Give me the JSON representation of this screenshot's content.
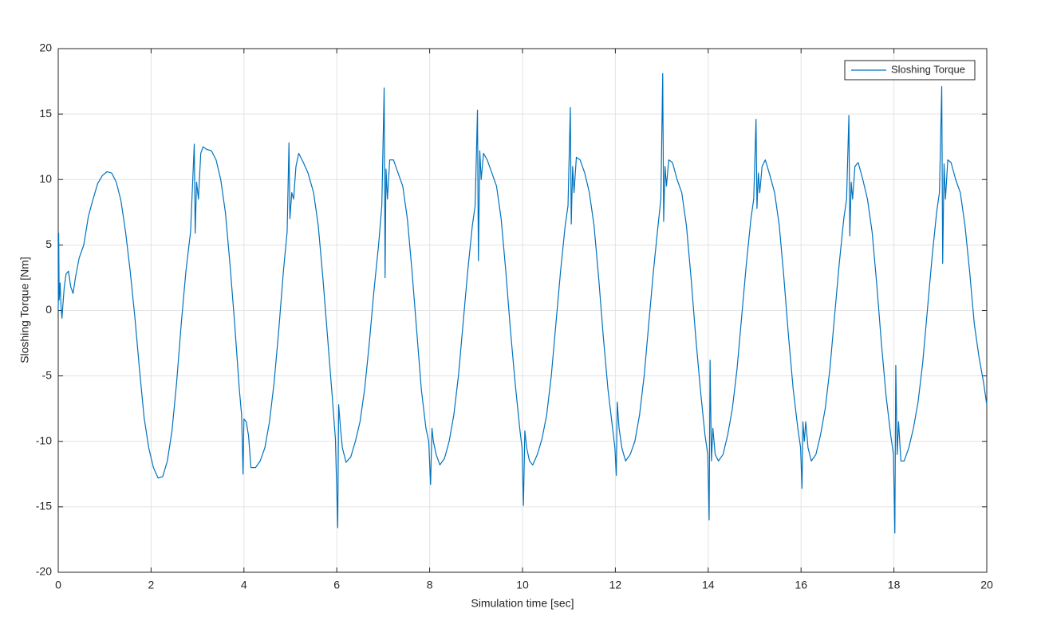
{
  "chart_data": {
    "type": "line",
    "xlabel": "Simulation time [sec]",
    "ylabel": "Sloshing Torque [Nm]",
    "xlim": [
      0,
      20
    ],
    "xticks": [
      0,
      2,
      4,
      6,
      8,
      10,
      12,
      14,
      16,
      18,
      20
    ],
    "ylim": [
      -20,
      20
    ],
    "yticks": [
      -20,
      -15,
      -10,
      -5,
      0,
      5,
      10,
      15,
      20
    ],
    "grid": true,
    "legend": "northeast",
    "x": [
      0,
      0.01,
      0.02,
      0.04,
      0.06,
      0.08,
      0.1,
      0.13,
      0.17,
      0.22,
      0.27,
      0.32,
      0.37,
      0.45,
      0.55,
      0.65,
      0.75,
      0.85,
      0.95,
      1.05,
      1.15,
      1.25,
      1.35,
      1.45,
      1.55,
      1.65,
      1.75,
      1.85,
      1.95,
      2.05,
      2.15,
      2.25,
      2.35,
      2.45,
      2.55,
      2.65,
      2.75,
      2.85,
      2.93,
      2.95,
      2.98,
      3.02,
      3.07,
      3.12,
      3.2,
      3.3,
      3.4,
      3.5,
      3.6,
      3.7,
      3.8,
      3.9,
      3.95,
      3.98,
      4.0,
      4.05,
      4.1,
      4.15,
      4.25,
      4.35,
      4.45,
      4.55,
      4.65,
      4.75,
      4.85,
      4.93,
      4.97,
      4.99,
      5.03,
      5.07,
      5.12,
      5.18,
      5.28,
      5.38,
      5.5,
      5.6,
      5.7,
      5.8,
      5.9,
      5.97,
      6.02,
      6.04,
      6.08,
      6.12,
      6.2,
      6.3,
      6.4,
      6.5,
      6.6,
      6.7,
      6.8,
      6.9,
      6.97,
      7.02,
      7.04,
      7.06,
      7.09,
      7.14,
      7.22,
      7.32,
      7.42,
      7.52,
      7.62,
      7.72,
      7.82,
      7.92,
      7.98,
      8.02,
      8.05,
      8.08,
      8.14,
      8.22,
      8.32,
      8.42,
      8.52,
      8.62,
      8.72,
      8.82,
      8.92,
      8.98,
      9.03,
      9.05,
      9.08,
      9.11,
      9.16,
      9.24,
      9.34,
      9.44,
      9.54,
      9.64,
      9.74,
      9.84,
      9.94,
      9.99,
      10.02,
      10.05,
      10.09,
      10.15,
      10.22,
      10.32,
      10.42,
      10.52,
      10.62,
      10.72,
      10.82,
      10.92,
      10.98,
      11.03,
      11.05,
      11.08,
      11.11,
      11.16,
      11.24,
      11.34,
      11.44,
      11.54,
      11.64,
      11.74,
      11.84,
      11.94,
      11.99,
      12.02,
      12.04,
      12.08,
      12.14,
      12.22,
      12.32,
      12.42,
      12.52,
      12.62,
      12.72,
      12.82,
      12.92,
      12.98,
      13.02,
      13.04,
      13.07,
      13.1,
      13.15,
      13.23,
      13.33,
      13.43,
      13.53,
      13.63,
      13.73,
      13.83,
      13.93,
      13.99,
      14.02,
      14.04,
      14.07,
      14.1,
      14.15,
      14.22,
      14.32,
      14.42,
      14.52,
      14.62,
      14.72,
      14.82,
      14.92,
      14.98,
      15.03,
      15.05,
      15.08,
      15.11,
      15.16,
      15.23,
      15.33,
      15.43,
      15.53,
      15.63,
      15.73,
      15.83,
      15.93,
      15.99,
      16.02,
      16.04,
      16.07,
      16.1,
      16.15,
      16.22,
      16.32,
      16.42,
      16.52,
      16.62,
      16.72,
      16.82,
      16.92,
      16.98,
      17.03,
      17.05,
      17.08,
      17.11,
      17.16,
      17.23,
      17.33,
      17.43,
      17.53,
      17.63,
      17.73,
      17.83,
      17.93,
      17.99,
      18.02,
      18.04,
      18.07,
      18.1,
      18.15,
      18.22,
      18.32,
      18.42,
      18.52,
      18.62,
      18.72,
      18.82,
      18.92,
      18.98,
      19.03,
      19.05,
      19.08,
      19.11,
      19.16,
      19.23,
      19.33,
      19.43,
      19.53,
      19.63,
      19.73,
      19.83,
      19.93,
      20
    ],
    "series": [
      {
        "name": "Sloshing Torque",
        "color": "#0072bd",
        "values": [
          0,
          5.9,
          0.8,
          2.1,
          0.3,
          -0.6,
          0.4,
          1.8,
          2.8,
          3.0,
          1.8,
          1.3,
          2.5,
          4.0,
          5.0,
          7.2,
          8.5,
          9.7,
          10.3,
          10.6,
          10.5,
          9.8,
          8.4,
          6.0,
          3.0,
          -0.5,
          -4.5,
          -8.2,
          -10.5,
          -12.0,
          -12.8,
          -12.7,
          -11.5,
          -9.2,
          -5.5,
          -1.0,
          3.0,
          6.0,
          12.7,
          5.9,
          9.8,
          8.5,
          12.0,
          12.5,
          12.3,
          12.2,
          11.5,
          10.0,
          7.5,
          3.5,
          -1.0,
          -6.0,
          -8.0,
          -12.5,
          -8.3,
          -8.5,
          -9.6,
          -12.0,
          -12.0,
          -11.5,
          -10.5,
          -8.5,
          -5.5,
          -1.5,
          3.0,
          6.0,
          12.8,
          7.0,
          9.0,
          8.5,
          11.0,
          12.0,
          11.3,
          10.5,
          9.0,
          6.5,
          2.5,
          -2.0,
          -6.5,
          -9.8,
          -16.6,
          -7.2,
          -9.0,
          -10.5,
          -11.6,
          -11.2,
          -10.0,
          -8.5,
          -6.0,
          -2.5,
          1.5,
          5.0,
          8.0,
          17.0,
          2.5,
          10.8,
          8.5,
          11.5,
          11.5,
          10.5,
          9.5,
          7.0,
          3.0,
          -1.5,
          -6.0,
          -9.0,
          -10.0,
          -13.3,
          -9.0,
          -10.0,
          -11.0,
          -11.8,
          -11.3,
          -10.0,
          -8.0,
          -5.0,
          -1.0,
          3.0,
          6.5,
          8.0,
          15.3,
          3.8,
          12.2,
          10.0,
          12.0,
          11.5,
          10.5,
          9.5,
          7.0,
          3.0,
          -1.5,
          -5.5,
          -9.0,
          -10.5,
          -14.9,
          -9.2,
          -10.5,
          -11.5,
          -11.8,
          -11.0,
          -9.8,
          -8.0,
          -5.0,
          -1.0,
          3.0,
          6.5,
          8.0,
          15.5,
          6.6,
          11.0,
          9.0,
          11.7,
          11.5,
          10.5,
          9.0,
          6.5,
          2.5,
          -2.0,
          -6.0,
          -9.0,
          -10.5,
          -12.6,
          -7.0,
          -9.0,
          -10.5,
          -11.5,
          -11.0,
          -10.0,
          -8.0,
          -5.0,
          -1.0,
          3.0,
          6.5,
          8.5,
          18.1,
          6.8,
          11.0,
          9.5,
          11.5,
          11.3,
          10.0,
          9.0,
          6.5,
          2.5,
          -2.0,
          -6.0,
          -9.5,
          -11.0,
          -16.0,
          -3.8,
          -11.5,
          -9.0,
          -11.0,
          -11.5,
          -11.0,
          -9.5,
          -7.5,
          -4.5,
          -0.5,
          3.5,
          7.0,
          8.5,
          14.6,
          7.8,
          10.5,
          9.0,
          11.0,
          11.5,
          10.3,
          9.0,
          6.5,
          2.5,
          -2.0,
          -6.0,
          -9.0,
          -10.5,
          -13.6,
          -8.5,
          -10.0,
          -8.5,
          -10.5,
          -11.5,
          -11.0,
          -9.5,
          -7.5,
          -4.5,
          -0.5,
          3.5,
          7.0,
          8.5,
          14.9,
          5.7,
          9.8,
          8.5,
          11.0,
          11.3,
          10.0,
          8.5,
          6.0,
          2.0,
          -2.5,
          -6.5,
          -9.5,
          -11.0,
          -17.0,
          -4.2,
          -11.0,
          -8.5,
          -11.5,
          -11.5,
          -10.5,
          -9.0,
          -7.0,
          -4.0,
          0.0,
          4.0,
          7.5,
          9.0,
          17.1,
          3.6,
          11.2,
          8.5,
          11.5,
          11.3,
          10.0,
          9.0,
          6.5,
          3.0,
          -1.0,
          -3.5,
          -5.5,
          -7.2
        ]
      }
    ]
  }
}
